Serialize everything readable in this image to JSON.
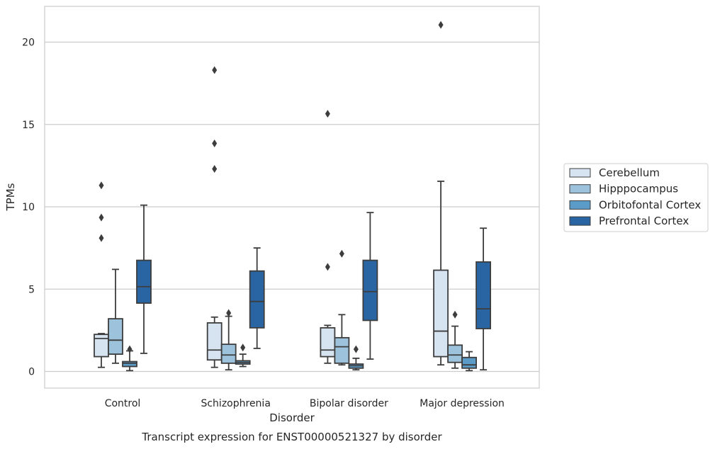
{
  "chart_data": {
    "type": "box",
    "title": "",
    "caption": "Transcript expression for ENST00000521327 by disorder",
    "xlabel": "Disorder",
    "ylabel": "TPMs",
    "ylim": [
      -1,
      22
    ],
    "yticks": [
      0,
      5,
      10,
      15,
      20
    ],
    "grid": "horizontal",
    "legend_position": "right",
    "categories": [
      "Control",
      "Schizophrenia",
      "Bipolar disorder",
      "Major depression"
    ],
    "series": [
      {
        "name": "Cerebellum",
        "color": "#d6e4f2",
        "boxes": [
          {
            "whislo": 0.25,
            "q1": 0.9,
            "med": 2.0,
            "q3": 2.25,
            "whishi": 2.3,
            "fliers": [
              8.1,
              9.35,
              11.3
            ]
          },
          {
            "whislo": 0.25,
            "q1": 0.7,
            "med": 1.3,
            "q3": 2.95,
            "whishi": 3.3,
            "fliers": [
              12.3,
              13.85,
              18.3
            ]
          },
          {
            "whislo": 0.5,
            "q1": 0.9,
            "med": 1.3,
            "q3": 2.65,
            "whishi": 2.8,
            "fliers": [
              6.35,
              15.65
            ]
          },
          {
            "whislo": 0.4,
            "q1": 0.9,
            "med": 2.45,
            "q3": 6.15,
            "whishi": 11.55,
            "fliers": [
              21.05
            ]
          }
        ]
      },
      {
        "name": "Hipppocampus",
        "color": "#9dc3dc",
        "boxes": [
          {
            "whislo": 0.5,
            "q1": 1.05,
            "med": 1.9,
            "q3": 3.2,
            "whishi": 6.2,
            "fliers": []
          },
          {
            "whislo": 0.1,
            "q1": 0.5,
            "med": 1.0,
            "q3": 1.65,
            "whishi": 3.35,
            "fliers": [
              3.55
            ]
          },
          {
            "whislo": 0.4,
            "q1": 0.5,
            "med": 1.5,
            "q3": 2.05,
            "whishi": 3.45,
            "fliers": [
              7.15
            ]
          },
          {
            "whislo": 0.2,
            "q1": 0.55,
            "med": 1.0,
            "q3": 1.6,
            "whishi": 2.75,
            "fliers": [
              3.45
            ]
          }
        ]
      },
      {
        "name": "Orbitofontal Cortex",
        "color": "#5b9bc8",
        "boxes": [
          {
            "whislo": 0.05,
            "q1": 0.3,
            "med": 0.5,
            "q3": 0.6,
            "whishi": 1.25,
            "fliers": [
              1.35
            ]
          },
          {
            "whislo": 0.3,
            "q1": 0.45,
            "med": 0.55,
            "q3": 0.65,
            "whishi": 1.05,
            "fliers": [
              1.45
            ]
          },
          {
            "whislo": 0.1,
            "q1": 0.2,
            "med": 0.35,
            "q3": 0.45,
            "whishi": 0.8,
            "fliers": [
              1.35
            ]
          },
          {
            "whislo": 0.05,
            "q1": 0.2,
            "med": 0.4,
            "q3": 0.85,
            "whishi": 1.2,
            "fliers": []
          }
        ]
      },
      {
        "name": "Prefrontal Cortex",
        "color": "#2a65a3",
        "boxes": [
          {
            "whislo": 1.1,
            "q1": 4.15,
            "med": 5.15,
            "q3": 6.75,
            "whishi": 10.1,
            "fliers": []
          },
          {
            "whislo": 1.4,
            "q1": 2.65,
            "med": 4.25,
            "q3": 6.1,
            "whishi": 7.5,
            "fliers": []
          },
          {
            "whislo": 0.75,
            "q1": 3.1,
            "med": 4.85,
            "q3": 6.75,
            "whishi": 9.65,
            "fliers": []
          },
          {
            "whislo": 0.1,
            "q1": 2.6,
            "med": 3.8,
            "q3": 6.65,
            "whishi": 8.7,
            "fliers": []
          }
        ]
      }
    ]
  }
}
